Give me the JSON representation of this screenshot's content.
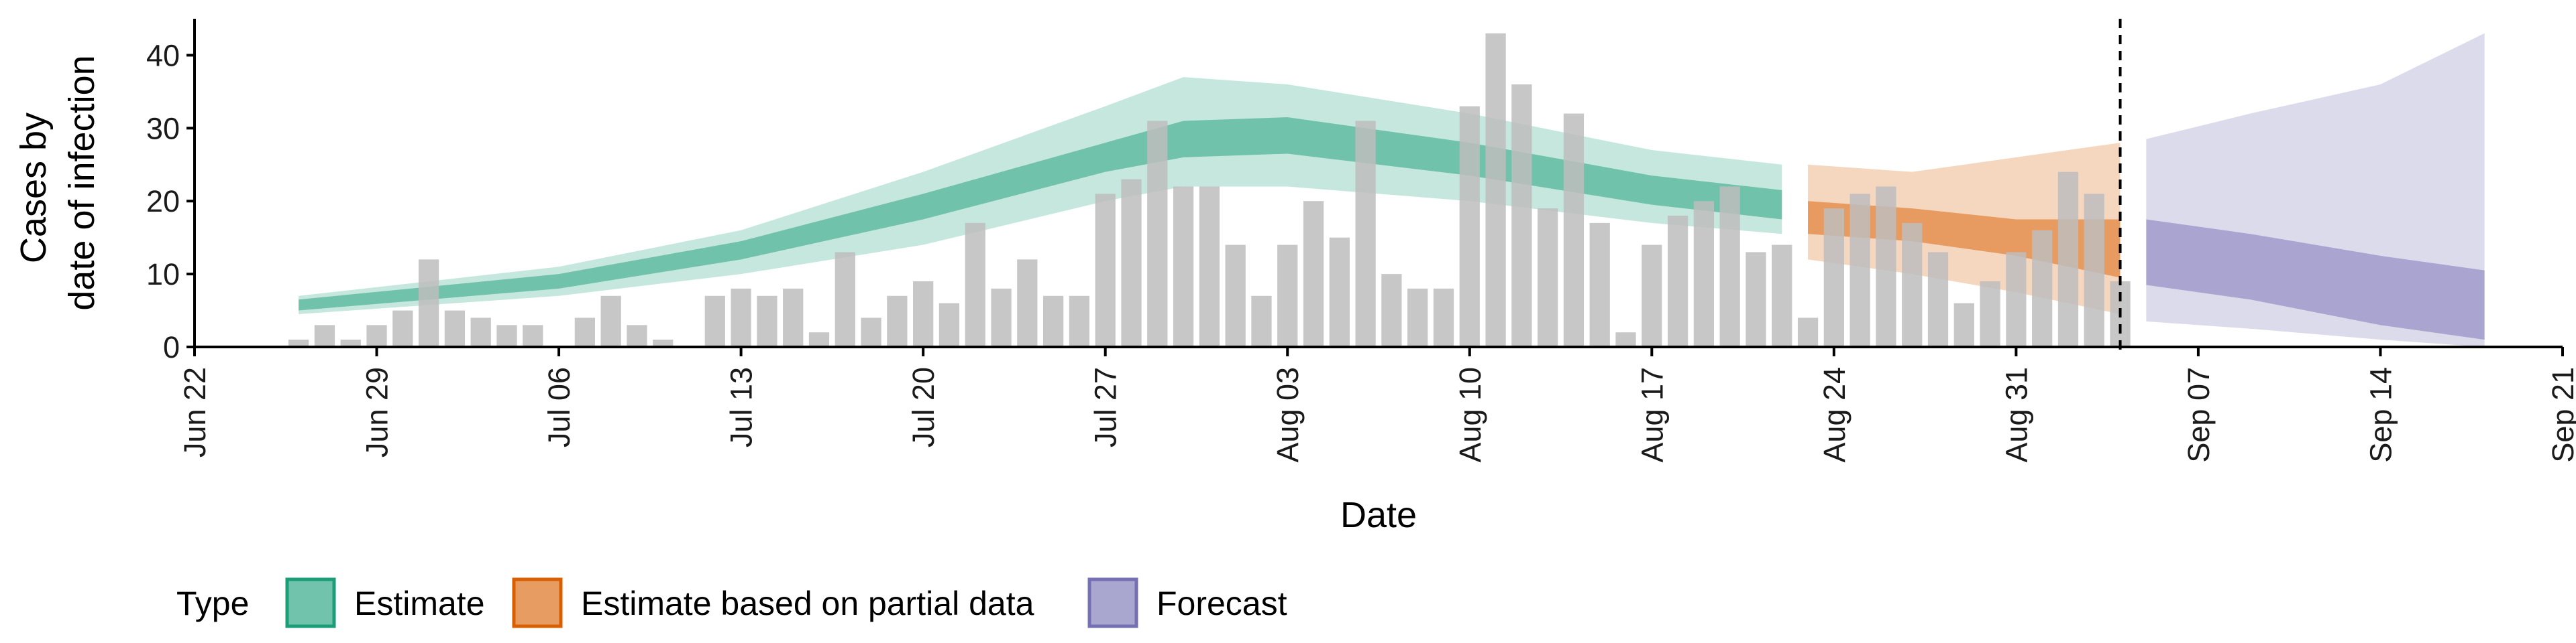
{
  "chart_data": {
    "type": "bar+area",
    "xlabel": "Date",
    "ylabel": [
      "Cases by",
      "date of infection"
    ],
    "ylim": [
      0,
      45
    ],
    "y_ticks": [
      0,
      10,
      20,
      30,
      40
    ],
    "x_ticks": [
      {
        "date": "2020-06-22",
        "label": "Jun 22"
      },
      {
        "date": "2020-06-29",
        "label": "Jun 29"
      },
      {
        "date": "2020-07-06",
        "label": "Jul 06"
      },
      {
        "date": "2020-07-13",
        "label": "Jul 13"
      },
      {
        "date": "2020-07-20",
        "label": "Jul 20"
      },
      {
        "date": "2020-07-27",
        "label": "Jul 27"
      },
      {
        "date": "2020-08-03",
        "label": "Aug 03"
      },
      {
        "date": "2020-08-10",
        "label": "Aug 10"
      },
      {
        "date": "2020-08-17",
        "label": "Aug 17"
      },
      {
        "date": "2020-08-24",
        "label": "Aug 24"
      },
      {
        "date": "2020-08-31",
        "label": "Aug 31"
      },
      {
        "date": "2020-09-07",
        "label": "Sep 07"
      },
      {
        "date": "2020-09-14",
        "label": "Sep 14"
      },
      {
        "date": "2020-09-21",
        "label": "Sep 21"
      }
    ],
    "xlim": [
      "2020-06-22",
      "2020-09-21"
    ],
    "vline_date": "2020-09-04",
    "grid": false,
    "colors": {
      "bars": "#bdbdbd",
      "estimate": "#1b9e77",
      "partial": "#d95f02",
      "forecast": "#7570b3"
    },
    "bars": [
      {
        "date": "2020-06-26",
        "value": 1
      },
      {
        "date": "2020-06-27",
        "value": 3
      },
      {
        "date": "2020-06-28",
        "value": 1
      },
      {
        "date": "2020-06-29",
        "value": 3
      },
      {
        "date": "2020-06-30",
        "value": 5
      },
      {
        "date": "2020-07-01",
        "value": 12
      },
      {
        "date": "2020-07-02",
        "value": 5
      },
      {
        "date": "2020-07-03",
        "value": 4
      },
      {
        "date": "2020-07-04",
        "value": 3
      },
      {
        "date": "2020-07-05",
        "value": 3
      },
      {
        "date": "2020-07-06",
        "value": 0
      },
      {
        "date": "2020-07-07",
        "value": 4
      },
      {
        "date": "2020-07-08",
        "value": 7
      },
      {
        "date": "2020-07-09",
        "value": 3
      },
      {
        "date": "2020-07-10",
        "value": 1
      },
      {
        "date": "2020-07-11",
        "value": 0
      },
      {
        "date": "2020-07-12",
        "value": 7
      },
      {
        "date": "2020-07-13",
        "value": 8
      },
      {
        "date": "2020-07-14",
        "value": 7
      },
      {
        "date": "2020-07-15",
        "value": 8
      },
      {
        "date": "2020-07-16",
        "value": 2
      },
      {
        "date": "2020-07-17",
        "value": 13
      },
      {
        "date": "2020-07-18",
        "value": 4
      },
      {
        "date": "2020-07-19",
        "value": 7
      },
      {
        "date": "2020-07-20",
        "value": 9
      },
      {
        "date": "2020-07-21",
        "value": 6
      },
      {
        "date": "2020-07-22",
        "value": 17
      },
      {
        "date": "2020-07-23",
        "value": 8
      },
      {
        "date": "2020-07-24",
        "value": 12
      },
      {
        "date": "2020-07-25",
        "value": 7
      },
      {
        "date": "2020-07-26",
        "value": 7
      },
      {
        "date": "2020-07-27",
        "value": 21
      },
      {
        "date": "2020-07-28",
        "value": 23
      },
      {
        "date": "2020-07-29",
        "value": 31
      },
      {
        "date": "2020-07-30",
        "value": 22
      },
      {
        "date": "2020-07-31",
        "value": 22
      },
      {
        "date": "2020-08-01",
        "value": 14
      },
      {
        "date": "2020-08-02",
        "value": 7
      },
      {
        "date": "2020-08-03",
        "value": 14
      },
      {
        "date": "2020-08-04",
        "value": 20
      },
      {
        "date": "2020-08-05",
        "value": 15
      },
      {
        "date": "2020-08-06",
        "value": 31
      },
      {
        "date": "2020-08-07",
        "value": 10
      },
      {
        "date": "2020-08-08",
        "value": 8
      },
      {
        "date": "2020-08-09",
        "value": 8
      },
      {
        "date": "2020-08-10",
        "value": 33
      },
      {
        "date": "2020-08-11",
        "value": 43
      },
      {
        "date": "2020-08-12",
        "value": 36
      },
      {
        "date": "2020-08-13",
        "value": 19
      },
      {
        "date": "2020-08-14",
        "value": 32
      },
      {
        "date": "2020-08-15",
        "value": 17
      },
      {
        "date": "2020-08-16",
        "value": 2
      },
      {
        "date": "2020-08-17",
        "value": 14
      },
      {
        "date": "2020-08-18",
        "value": 18
      },
      {
        "date": "2020-08-19",
        "value": 20
      },
      {
        "date": "2020-08-20",
        "value": 22
      },
      {
        "date": "2020-08-21",
        "value": 13
      },
      {
        "date": "2020-08-22",
        "value": 14
      },
      {
        "date": "2020-08-23",
        "value": 4
      },
      {
        "date": "2020-08-24",
        "value": 19
      },
      {
        "date": "2020-08-25",
        "value": 21
      },
      {
        "date": "2020-08-26",
        "value": 22
      },
      {
        "date": "2020-08-27",
        "value": 17
      },
      {
        "date": "2020-08-28",
        "value": 13
      },
      {
        "date": "2020-08-29",
        "value": 6
      },
      {
        "date": "2020-08-30",
        "value": 9
      },
      {
        "date": "2020-08-31",
        "value": 13
      },
      {
        "date": "2020-09-01",
        "value": 16
      },
      {
        "date": "2020-09-02",
        "value": 24
      },
      {
        "date": "2020-09-03",
        "value": 21
      },
      {
        "date": "2020-09-04",
        "value": 9
      }
    ],
    "series": [
      {
        "name": "Estimate",
        "points": [
          {
            "date": "2020-06-26",
            "lo90": 4.5,
            "lo50": 5.0,
            "hi50": 6.5,
            "hi90": 7.0
          },
          {
            "date": "2020-07-06",
            "lo90": 7.0,
            "lo50": 8.0,
            "hi50": 10.0,
            "hi90": 11.0
          },
          {
            "date": "2020-07-13",
            "lo90": 10.0,
            "lo50": 12.0,
            "hi50": 14.5,
            "hi90": 16.0
          },
          {
            "date": "2020-07-20",
            "lo90": 14.0,
            "lo50": 17.5,
            "hi50": 21.0,
            "hi90": 24.0
          },
          {
            "date": "2020-07-27",
            "lo90": 20.0,
            "lo50": 24.0,
            "hi50": 28.0,
            "hi90": 33.0
          },
          {
            "date": "2020-07-30",
            "lo90": 22.0,
            "lo50": 26.0,
            "hi50": 31.0,
            "hi90": 37.0
          },
          {
            "date": "2020-08-03",
            "lo90": 22.0,
            "lo50": 26.5,
            "hi50": 31.5,
            "hi90": 36.0
          },
          {
            "date": "2020-08-10",
            "lo90": 20.0,
            "lo50": 23.5,
            "hi50": 28.0,
            "hi90": 32.0
          },
          {
            "date": "2020-08-17",
            "lo90": 17.0,
            "lo50": 19.5,
            "hi50": 23.5,
            "hi90": 27.0
          },
          {
            "date": "2020-08-22",
            "lo90": 15.5,
            "lo50": 17.5,
            "hi50": 21.5,
            "hi90": 25.0
          }
        ]
      },
      {
        "name": "Estimate based on partial data",
        "points": [
          {
            "date": "2020-08-23",
            "lo90": 12.0,
            "lo50": 15.5,
            "hi50": 20.0,
            "hi90": 25.0
          },
          {
            "date": "2020-08-27",
            "lo90": 10.0,
            "lo50": 14.5,
            "hi50": 19.0,
            "hi90": 24.0
          },
          {
            "date": "2020-08-31",
            "lo90": 7.5,
            "lo50": 12.5,
            "hi50": 17.5,
            "hi90": 26.0
          },
          {
            "date": "2020-09-04",
            "lo90": 4.5,
            "lo50": 9.5,
            "hi50": 17.5,
            "hi90": 28.0
          }
        ]
      },
      {
        "name": "Forecast",
        "points": [
          {
            "date": "2020-09-05",
            "lo90": 3.5,
            "lo50": 8.5,
            "hi50": 17.5,
            "hi90": 28.5
          },
          {
            "date": "2020-09-09",
            "lo90": 2.5,
            "lo50": 6.5,
            "hi50": 15.5,
            "hi90": 32.0
          },
          {
            "date": "2020-09-14",
            "lo90": 1.0,
            "lo50": 3.0,
            "hi50": 12.5,
            "hi90": 36.0
          },
          {
            "date": "2020-09-18",
            "lo90": 0.0,
            "lo50": 1.0,
            "hi50": 10.5,
            "hi90": 43.0
          }
        ]
      }
    ],
    "legend": {
      "title": "Type",
      "position": "bottom",
      "items": [
        {
          "label": "Estimate",
          "color": "#1b9e77"
        },
        {
          "label": "Estimate based on partial data",
          "color": "#d95f02"
        },
        {
          "label": "Forecast",
          "color": "#7570b3"
        }
      ]
    }
  }
}
